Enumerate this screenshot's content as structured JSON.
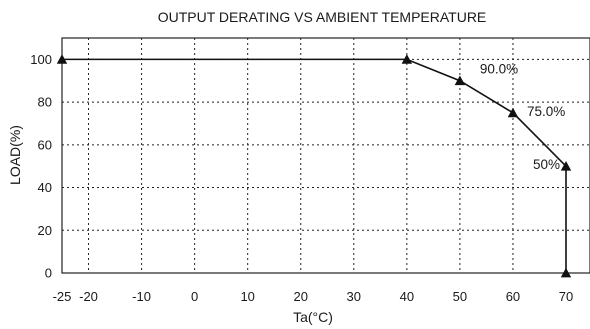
{
  "chart_data": {
    "type": "line",
    "title": "OUTPUT DERATING VS AMBIENT TEMPERATURE",
    "xlabel": "Ta(°C)",
    "ylabel": "LOAD(%)",
    "xlim": [
      -25,
      70
    ],
    "ylim": [
      0,
      110
    ],
    "x_ticks": [
      -25,
      -20,
      -10,
      0,
      10,
      20,
      30,
      40,
      50,
      60,
      70
    ],
    "x_tick_labels": [
      "-25",
      "-20",
      "-10",
      "0",
      "10",
      "20",
      "30",
      "40",
      "50",
      "60",
      "70"
    ],
    "y_ticks": [
      0,
      20,
      40,
      60,
      80,
      100
    ],
    "y_tick_labels": [
      "0",
      "20",
      "40",
      "60",
      "80",
      "100"
    ],
    "x_grid": [
      -20,
      -10,
      0,
      10,
      20,
      30,
      40,
      50,
      60
    ],
    "y_grid": [
      20,
      40,
      60,
      80,
      100
    ],
    "grid": true,
    "series": [
      {
        "x": [
          -25,
          40,
          50,
          60,
          70,
          70
        ],
        "y": [
          100,
          100,
          90,
          75,
          50,
          0
        ]
      }
    ],
    "annotations": [
      {
        "text": "90.0%",
        "x": 50,
        "y": 90
      },
      {
        "text": "75.0%",
        "x": 60,
        "y": 75
      },
      {
        "text": "50%",
        "x": 70,
        "y": 50
      }
    ]
  }
}
